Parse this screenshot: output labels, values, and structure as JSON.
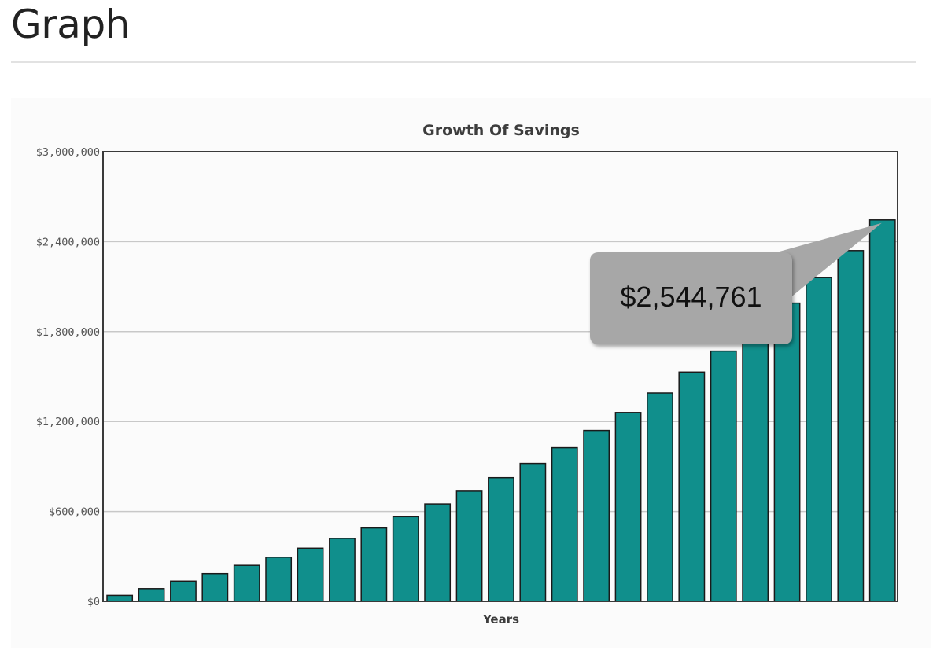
{
  "page": {
    "heading": "Graph"
  },
  "chart_data": {
    "type": "bar",
    "title": "Growth Of Savings",
    "xlabel": "Years",
    "ylabel": "",
    "ylim": [
      0,
      3000000
    ],
    "yticks": [
      {
        "value": 0,
        "label": "$0"
      },
      {
        "value": 600000,
        "label": "$600,000"
      },
      {
        "value": 1200000,
        "label": "$1,200,000"
      },
      {
        "value": 1800000,
        "label": "$1,800,000"
      },
      {
        "value": 2400000,
        "label": "$2,400,000"
      },
      {
        "value": 3000000,
        "label": "$3,000,000"
      }
    ],
    "grid": true,
    "legend": "none",
    "values": [
      40000,
      85000,
      135000,
      185000,
      240000,
      295000,
      355000,
      420000,
      490000,
      565000,
      650000,
      735000,
      825000,
      920000,
      1025000,
      1140000,
      1260000,
      1390000,
      1530000,
      1670000,
      1830000,
      1990000,
      2160000,
      2340000,
      2544761
    ],
    "bar_color": "#108f8c",
    "bar_stroke": "#1a1a1a",
    "tooltip": {
      "text": "$2,544,761",
      "bar_index": 24
    }
  }
}
